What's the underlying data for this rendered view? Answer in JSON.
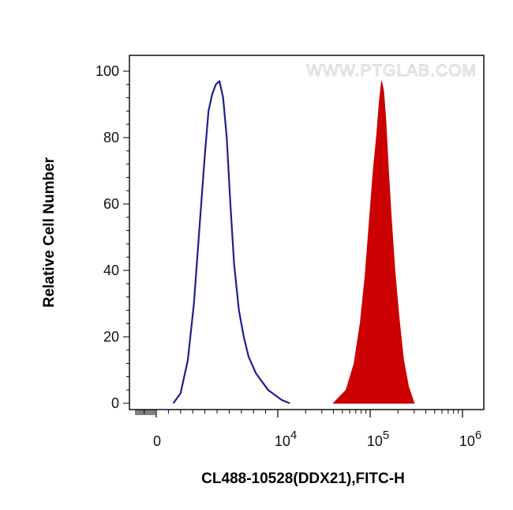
{
  "chart_data": {
    "type": "area",
    "xlabel": "CL488-10528(DDX21),FITC-H",
    "ylabel": "Relative Cell Number",
    "x_scale": "biexponential (log above 10^4)",
    "ylim": [
      0,
      100
    ],
    "y_ticks": [
      "0",
      "20",
      "40",
      "60",
      "80",
      "100"
    ],
    "x_ticks": [
      {
        "base": "0",
        "exp": ""
      },
      {
        "base": "10",
        "exp": "4"
      },
      {
        "base": "10",
        "exp": "5"
      },
      {
        "base": "10",
        "exp": "6"
      }
    ],
    "watermark": "WWW.PTGLAB.COM",
    "grid": false,
    "series": [
      {
        "style": "outline",
        "color": "#1f1f8f",
        "x": [
          1400,
          2000,
          2600,
          3100,
          3600,
          4000,
          4300,
          4600,
          4900,
          5200,
          5500,
          5800,
          6100,
          6400,
          6800,
          7200,
          7600,
          8200,
          9200,
          11000,
          13500
        ],
        "y": [
          0,
          3,
          13,
          30,
          55,
          75,
          88,
          93,
          96,
          97,
          92,
          80,
          60,
          42,
          28,
          20,
          14,
          9,
          4,
          1,
          0
        ]
      },
      {
        "style": "filled",
        "color": "#cc0000",
        "x": [
          40000,
          55000,
          67000,
          78000,
          88000,
          98000,
          108000,
          118000,
          126000,
          133000,
          140000,
          148000,
          158000,
          170000,
          185000,
          205000,
          230000,
          260000,
          300000
        ],
        "y": [
          0,
          4,
          12,
          24,
          38,
          55,
          70,
          81,
          91,
          97,
          94,
          85,
          70,
          55,
          40,
          26,
          13,
          5,
          0
        ]
      }
    ]
  }
}
